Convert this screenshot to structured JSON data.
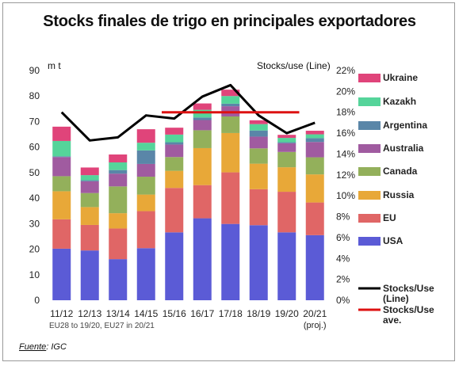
{
  "chart_data": {
    "type": "bar",
    "title": "Stocks finales de trigo en principales exportadores",
    "ylabel_left": "m t",
    "ylabel_right": "Stocks/use (Line)",
    "ylim": [
      0,
      90
    ],
    "y2lim": [
      0,
      22
    ],
    "yticks": [
      "0",
      "10",
      "20",
      "30",
      "40",
      "50",
      "60",
      "70",
      "80",
      "90"
    ],
    "y2ticks": [
      "0%",
      "2%",
      "4%",
      "6%",
      "8%",
      "10%",
      "12%",
      "14%",
      "16%",
      "18%",
      "20%",
      "22%"
    ],
    "categories": [
      "11/12",
      "12/13",
      "13/14",
      "14/15",
      "15/16",
      "16/17",
      "17/18",
      "18/19",
      "19/20",
      "20/21"
    ],
    "category_sub": [
      "",
      "",
      "",
      "",
      "",
      "",
      "",
      "",
      "",
      "(proj.)"
    ],
    "footnote": "EU28 to 19/20, EU27 in 20/21",
    "stacked": true,
    "series": [
      {
        "name": "USA",
        "color": "#5b5bd6",
        "values": [
          20.2,
          19.5,
          16.1,
          20.4,
          26.6,
          32.1,
          29.9,
          29.4,
          26.6,
          25.5
        ]
      },
      {
        "name": "EU",
        "color": "#e06666",
        "values": [
          11.5,
          10.0,
          12.0,
          14.5,
          17.4,
          13.0,
          20.2,
          14.1,
          15.9,
          12.8
        ]
      },
      {
        "name": "Russia",
        "color": "#e8a838",
        "values": [
          11.0,
          7.0,
          6.0,
          6.5,
          6.7,
          14.5,
          15.4,
          10.0,
          9.6,
          11.0
        ]
      },
      {
        "name": "Canada",
        "color": "#93b05b",
        "values": [
          5.9,
          5.5,
          10.5,
          7.0,
          5.4,
          7.0,
          6.5,
          6.0,
          6.0,
          6.7
        ]
      },
      {
        "name": "Australia",
        "color": "#a05ba0",
        "values": [
          7.5,
          4.6,
          5.0,
          5.0,
          4.9,
          4.0,
          4.0,
          4.6,
          3.4,
          6.0
        ]
      },
      {
        "name": "Argentina",
        "color": "#5a86a8",
        "values": [
          0.3,
          0.4,
          1.4,
          5.3,
          0.9,
          1.0,
          1.0,
          2.4,
          0.4,
          1.5
        ]
      },
      {
        "name": "Kazakh",
        "color": "#55d49a",
        "values": [
          6.0,
          2.0,
          3.0,
          3.0,
          3.0,
          3.0,
          3.0,
          2.5,
          1.7,
          1.5
        ]
      },
      {
        "name": "Ukraine",
        "color": "#e0447a",
        "values": [
          5.6,
          3.0,
          3.1,
          5.3,
          2.7,
          2.5,
          2.5,
          1.5,
          1.2,
          1.4
        ]
      }
    ],
    "lines": [
      {
        "name": "Stocks/Use (Line)",
        "color": "#000000",
        "axis": "right",
        "values": [
          18.0,
          15.3,
          15.6,
          17.7,
          17.4,
          19.5,
          20.6,
          17.7,
          16.0,
          17.0
        ]
      },
      {
        "name": "Stocks/Use ave.",
        "color": "#dd1111",
        "axis": "right",
        "values": [
          null,
          null,
          null,
          null,
          18.0,
          18.0,
          18.0,
          18.0,
          18.0,
          null
        ]
      }
    ],
    "legend_position": "right",
    "legend_order": [
      "Ukraine",
      "Kazakh",
      "Argentina",
      "Australia",
      "Canada",
      "Russia",
      "EU",
      "USA",
      "Stocks/Use (Line)",
      "Stocks/Use ave."
    ],
    "grid": false
  },
  "source": {
    "label": "Fuente",
    "value": ": IGC"
  }
}
